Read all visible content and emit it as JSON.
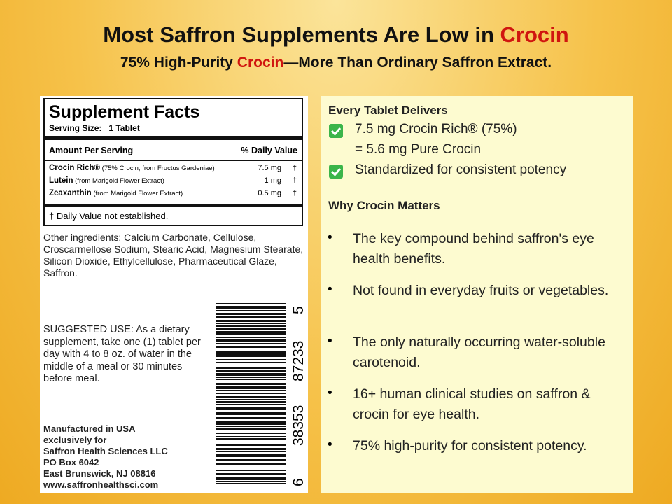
{
  "header": {
    "title": {
      "text": "Most Saffron Supplements Are Low in ",
      "highlight": "Crocin"
    },
    "subtitle": {
      "before": "75% High-Purity ",
      "highlight": "Crocin",
      "after": "—More Than Ordinary Saffron Extract."
    }
  },
  "label": {
    "facts": {
      "title": "Supplement Facts",
      "serving": "Serving Size:   1 Tablet",
      "col_amount": "Amount Per Serving",
      "col_dv": "% Daily Value",
      "rows": [
        {
          "name": "Crocin Rich®",
          "detail": " (75% Crocin, from Fructus Gardeniae)",
          "amount": "7.5 mg",
          "dv": "†"
        },
        {
          "name": "Lutein",
          "detail": " (from Marigold Flower Extract)",
          "amount": "1 mg",
          "dv": "†"
        },
        {
          "name": "Zeaxanthin",
          "detail": " (from Marigold Flower Extract)",
          "amount": "0.5 mg",
          "dv": "†"
        }
      ],
      "footnote": "† Daily Value not established."
    },
    "other_ingredients": "Other ingredients: Calcium Carbonate, Cellulose, Croscarmellose Sodium, Stearic Acid, Magnesium Stearate, Silicon Dioxide, Ethylcellulose, Pharmaceutical Glaze, Saffron.",
    "suggested_use": "SUGGESTED USE: As a dietary supplement, take one (1) tablet per day with 4 to 8 oz. of water in the middle of a meal or 30 minutes before meal.",
    "manufacturer": [
      "Manufactured in USA",
      "exclusively for",
      "Saffron Health Sciences LLC",
      "PO Box 6042",
      "East Brunswick, NJ 08816",
      "www.saffronhealthsci.com"
    ],
    "barcode_digits": [
      "6",
      "38353",
      "87233",
      "5"
    ]
  },
  "panel": {
    "delivers_title": "Every Tablet Delivers",
    "delivers": [
      "7.5 mg Crocin Rich® (75%)",
      "Standardized for consistent potency"
    ],
    "delivers_note": "= 5.6 mg Pure Crocin",
    "why_title": "Why Crocin Matters",
    "bullets": [
      "The key compound behind saffron's eye health benefits.",
      "Not found in everyday fruits or vegetables.",
      "The only naturally occurring water-soluble carotenoid.",
      "16+ human clinical studies on saffron & crocin for eye health.",
      "75% high-purity for consistent potency."
    ]
  }
}
